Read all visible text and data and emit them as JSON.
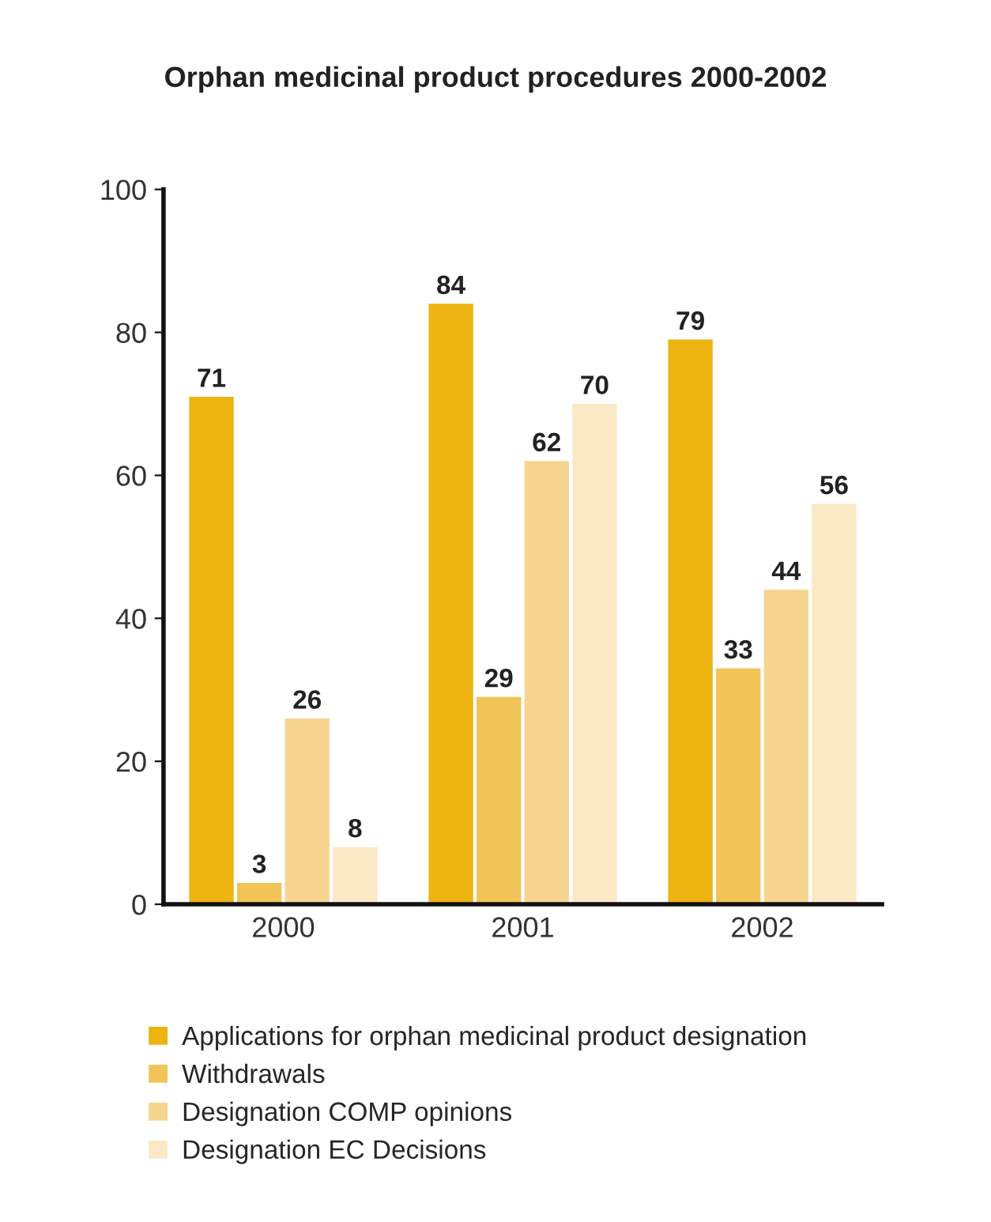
{
  "chart_data": {
    "type": "bar",
    "title": "Orphan medicinal product procedures 2000-2002",
    "categories": [
      "2000",
      "2001",
      "2002"
    ],
    "series": [
      {
        "name": "Applications for orphan medicinal product designation",
        "color": "#ecb311",
        "values": [
          71,
          84,
          79
        ]
      },
      {
        "name": "Withdrawals",
        "color": "#f1c458",
        "values": [
          3,
          29,
          33
        ]
      },
      {
        "name": "Designation COMP opinions",
        "color": "#f6d590",
        "values": [
          26,
          62,
          44
        ]
      },
      {
        "name": "Designation EC Decisions",
        "color": "#fbe8c4",
        "values": [
          8,
          70,
          56
        ]
      }
    ],
    "ylim": [
      0,
      100
    ],
    "yticks": [
      0,
      20,
      40,
      60,
      80,
      100
    ],
    "grid": false,
    "legend": "bottom",
    "data_labels": true
  }
}
